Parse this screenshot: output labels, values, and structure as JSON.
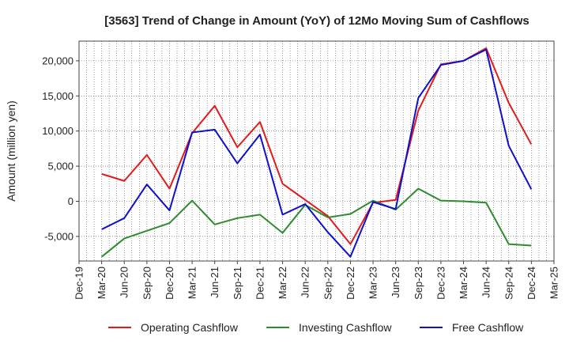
{
  "chart_data": {
    "type": "line",
    "title": "[3563]  Trend of Change in Amount (YoY) of 12Mo Moving Sum of Cashflows",
    "xlabel": "",
    "ylabel": "Amount (million yen)",
    "ylim": [
      -8500,
      22800
    ],
    "yticks": [
      -5000,
      0,
      5000,
      10000,
      15000,
      20000
    ],
    "ytick_labels": [
      "-5,000",
      "0",
      "5,000",
      "10,000",
      "15,000",
      "20,000"
    ],
    "categories": [
      "Dec-19",
      "Mar-20",
      "Jun-20",
      "Sep-20",
      "Dec-20",
      "Mar-21",
      "Jun-21",
      "Sep-21",
      "Dec-21",
      "Mar-22",
      "Jun-22",
      "Sep-22",
      "Dec-22",
      "Mar-23",
      "Jun-23",
      "Sep-23",
      "Dec-23",
      "Mar-24",
      "Jun-24",
      "Sep-24",
      "Dec-24",
      "Mar-25"
    ],
    "grid": true,
    "legend_position": "bottom",
    "series": [
      {
        "name": "Operating Cashflow",
        "color": "#e31a1c",
        "values": [
          null,
          3900,
          2900,
          6600,
          1800,
          9700,
          13600,
          7700,
          11300,
          2500,
          200,
          -2100,
          -6100,
          -200,
          200,
          12900,
          19500,
          20000,
          21800,
          14000,
          8100,
          null
        ]
      },
      {
        "name": "Investing Cashflow",
        "color": "#2e8b2e",
        "values": [
          null,
          -7900,
          -5300,
          -4200,
          -3100,
          100,
          -3300,
          -2400,
          -1900,
          -4500,
          -500,
          -2300,
          -1800,
          100,
          -1200,
          1800,
          100,
          0,
          -200,
          -6100,
          -6300,
          null
        ]
      },
      {
        "name": "Free Cashflow",
        "color": "#1010cc",
        "values": [
          null,
          -4000,
          -2400,
          2400,
          -1300,
          9800,
          10200,
          5400,
          9500,
          -1900,
          -400,
          -4400,
          -7900,
          -100,
          -1100,
          14700,
          19400,
          20000,
          21600,
          7900,
          1700,
          null
        ]
      }
    ]
  }
}
